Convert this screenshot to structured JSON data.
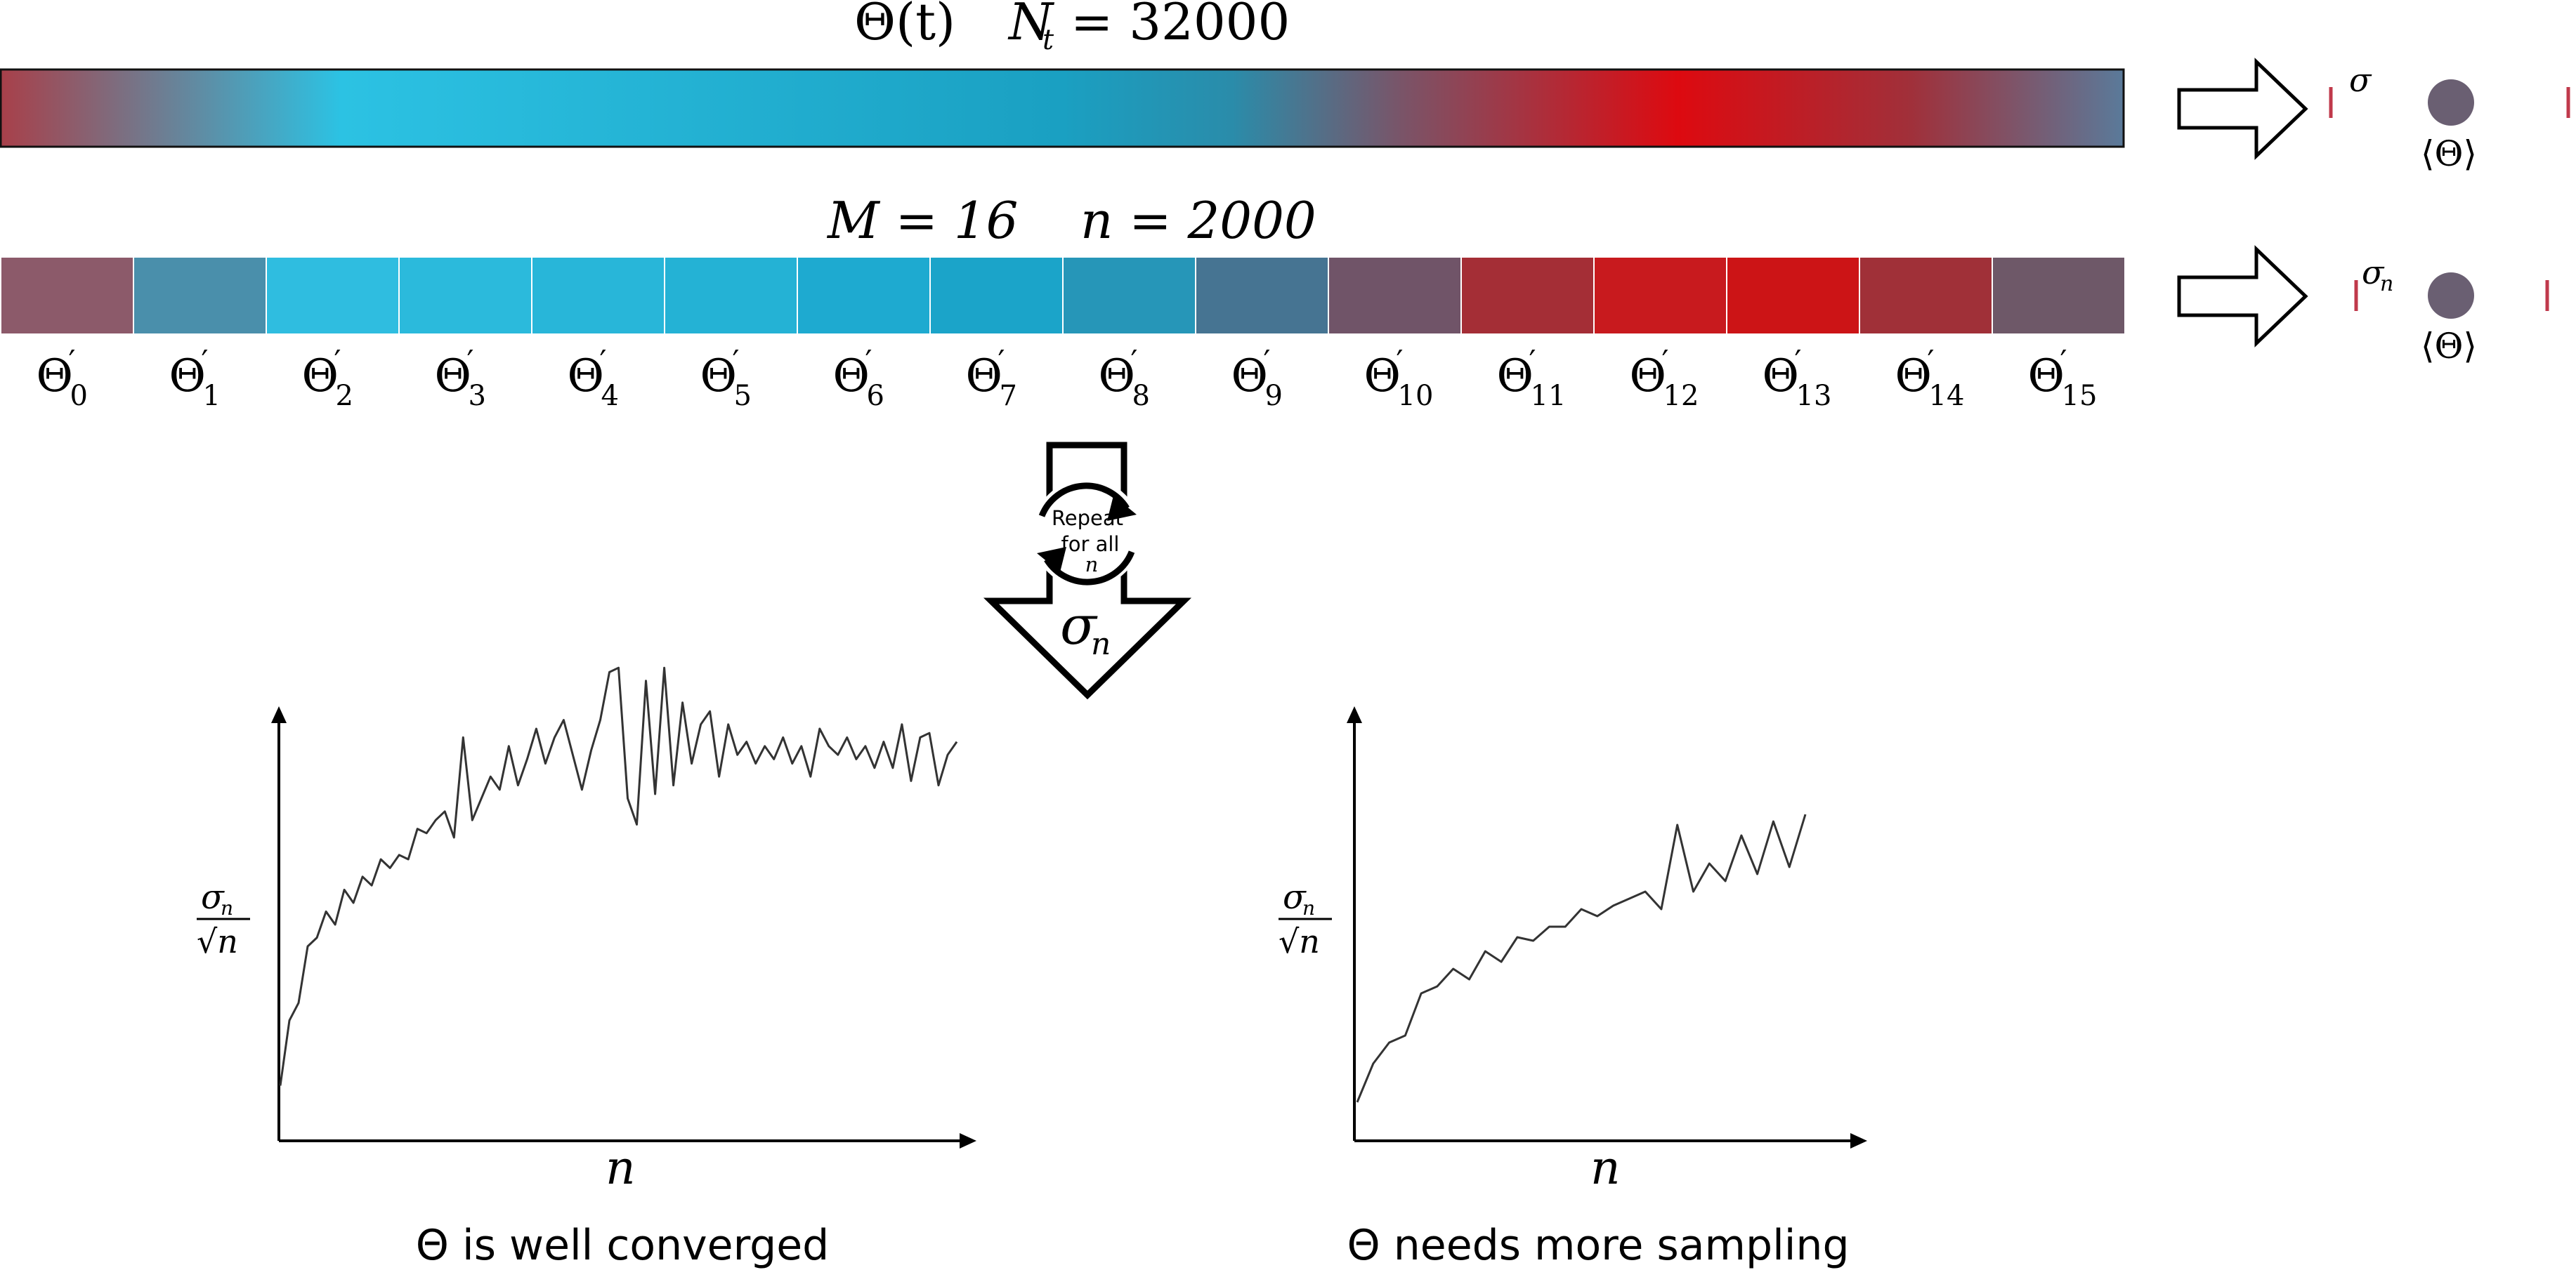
{
  "top_bar": {
    "theta_label": "Θ(t)",
    "nt_name": "N",
    "nt_sub": "t",
    "nt_value": "= 32000",
    "gradient_colors": [
      "#a8404a",
      "#2cc2e3",
      "#1aa0c2",
      "#b83438",
      "#dd0a10",
      "#5a7a9a"
    ]
  },
  "block_header": {
    "m_label": "M = 16",
    "n_label": "n = 2000"
  },
  "blocks": [
    {
      "label": "Θ",
      "sub": "0",
      "color": "#8c5a6a"
    },
    {
      "label": "Θ",
      "sub": "1",
      "color": "#4a8fab"
    },
    {
      "label": "Θ",
      "sub": "2",
      "color": "#2fbde0"
    },
    {
      "label": "Θ",
      "sub": "3",
      "color": "#2bbadc"
    },
    {
      "label": "Θ",
      "sub": "4",
      "color": "#28b6d9"
    },
    {
      "label": "Θ",
      "sub": "5",
      "color": "#24b2d5"
    },
    {
      "label": "Θ",
      "sub": "6",
      "color": "#1eaad0"
    },
    {
      "label": "Θ",
      "sub": "7",
      "color": "#1ba4c9"
    },
    {
      "label": "Θ",
      "sub": "8",
      "color": "#2696b8"
    },
    {
      "label": "Θ",
      "sub": "9",
      "color": "#467492"
    },
    {
      "label": "Θ",
      "sub": "10",
      "color": "#705468"
    },
    {
      "label": "Θ",
      "sub": "11",
      "color": "#a42e36"
    },
    {
      "label": "Θ",
      "sub": "12",
      "color": "#c81a1e"
    },
    {
      "label": "Θ",
      "sub": "13",
      "color": "#cc1416"
    },
    {
      "label": "Θ",
      "sub": "14",
      "color": "#a03038"
    },
    {
      "label": "Θ",
      "sub": "15",
      "color": "#6e5868"
    }
  ],
  "summary_top": {
    "sigma_label": "σ",
    "mean_label": "⟨Θ⟩"
  },
  "summary_bottom": {
    "sigma_label": "σ",
    "sigma_sub": "n",
    "mean_label": "⟨Θ⟩"
  },
  "repeat": {
    "line1": "Repeat",
    "line2": "for all",
    "line3": "n",
    "sigma_label": "σ",
    "sigma_sub": "n"
  },
  "plots": [
    {
      "ylabel_num": "σ",
      "ylabel_num_sub": "n",
      "ylabel_den": "√n",
      "xlabel": "n",
      "caption": "Θ is well converged",
      "y": [
        0.03,
        0.18,
        0.22,
        0.35,
        0.37,
        0.43,
        0.4,
        0.48,
        0.45,
        0.51,
        0.49,
        0.55,
        0.53,
        0.56,
        0.55,
        0.62,
        0.61,
        0.64,
        0.66,
        0.6,
        0.83,
        0.64,
        0.69,
        0.74,
        0.71,
        0.81,
        0.72,
        0.78,
        0.85,
        0.77,
        0.83,
        0.87,
        0.79,
        0.71,
        0.8,
        0.87,
        0.98,
        0.99,
        0.69,
        0.63,
        0.96,
        0.7,
        0.99,
        0.72,
        0.91,
        0.77,
        0.86,
        0.89,
        0.74,
        0.86,
        0.79,
        0.82,
        0.77,
        0.81,
        0.78,
        0.83,
        0.77,
        0.81,
        0.74,
        0.85,
        0.81,
        0.79,
        0.83,
        0.78,
        0.81,
        0.76,
        0.82,
        0.76,
        0.86,
        0.73,
        0.83,
        0.84,
        0.72,
        0.79,
        0.82
      ]
    },
    {
      "ylabel_num": "σ",
      "ylabel_num_sub": "n",
      "ylabel_den": "√n",
      "xlabel": "n",
      "caption": "Θ needs more sampling",
      "y": [
        0.03,
        0.14,
        0.2,
        0.22,
        0.34,
        0.36,
        0.41,
        0.38,
        0.46,
        0.43,
        0.5,
        0.49,
        0.53,
        0.53,
        0.58,
        0.56,
        0.59,
        0.61,
        0.63,
        0.58,
        0.82,
        0.63,
        0.71,
        0.66,
        0.79,
        0.68,
        0.83,
        0.7,
        0.85
      ]
    }
  ],
  "colors": {
    "sigma_left": "#c0394b",
    "sigma_mid_blue": "#2ec2e0",
    "sigma_right": "#c0394b",
    "mean_dot": "#6a5f72"
  }
}
